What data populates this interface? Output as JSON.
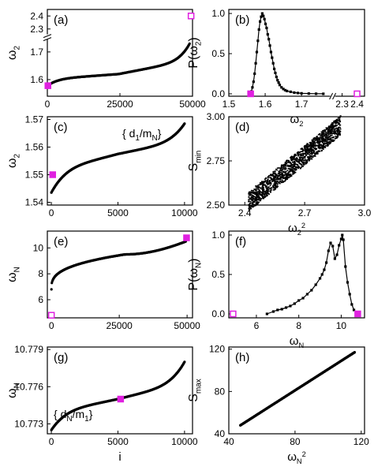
{
  "colors": {
    "data": "#000000",
    "highlight": "#e020e0",
    "axis": "#000000"
  },
  "chart_data": [
    {
      "id": "a",
      "panel_label": "(a)",
      "type": "scatter",
      "ylabel": "ω2",
      "xlabel": "",
      "xlim": [
        0,
        50000
      ],
      "ylim": [
        1.54,
        2.45
      ],
      "y_axis_break": [
        1.75,
        2.25
      ],
      "xticks": [
        {
          "v": 0,
          "label": "0"
        },
        {
          "v": 25000,
          "label": "25000"
        },
        {
          "v": 50000,
          "label": "50000"
        }
      ],
      "yticks": [
        {
          "v": 1.6,
          "label": "1.6"
        },
        {
          "v": 1.7,
          "label": "1.7"
        },
        {
          "v": 2.3,
          "label": "2.3"
        },
        {
          "v": 2.4,
          "label": "2.4"
        }
      ],
      "curve": {
        "kind": "sorted",
        "x0": 0,
        "x1": 49000,
        "y0": 1.578,
        "y1": 1.73,
        "ymid": 1.62,
        "p": 7
      },
      "markers": [
        {
          "x": 200,
          "y": 1.578,
          "style": "filled"
        },
        {
          "x": 49500,
          "y": 2.4,
          "style": "open"
        }
      ]
    },
    {
      "id": "b",
      "panel_label": "(b)",
      "type": "line",
      "ylabel": "P(ω2)",
      "xlabel": "ω2",
      "xlim": [
        1.5,
        2.45
      ],
      "ylim": [
        -0.03,
        1.05
      ],
      "x_axis_break": [
        1.78,
        2.25
      ],
      "xticks": [
        {
          "v": 1.5,
          "label": "1.5"
        },
        {
          "v": 1.6,
          "label": "1.6"
        },
        {
          "v": 1.7,
          "label": "1.7"
        },
        {
          "v": 2.3,
          "label": "2.3"
        },
        {
          "v": 2.4,
          "label": "2.4"
        }
      ],
      "yticks": [
        {
          "v": 0.0,
          "label": "0.0"
        },
        {
          "v": 0.5,
          "label": "0.5"
        },
        {
          "v": 1.0,
          "label": "1.0"
        }
      ],
      "points": [
        [
          1.56,
          0.0
        ],
        [
          1.562,
          0.03
        ],
        [
          1.565,
          0.08
        ],
        [
          1.568,
          0.15
        ],
        [
          1.571,
          0.25
        ],
        [
          1.574,
          0.38
        ],
        [
          1.577,
          0.52
        ],
        [
          1.58,
          0.66
        ],
        [
          1.583,
          0.8
        ],
        [
          1.586,
          0.9
        ],
        [
          1.589,
          0.96
        ],
        [
          1.592,
          1.0
        ],
        [
          1.595,
          0.97
        ],
        [
          1.598,
          0.93
        ],
        [
          1.601,
          0.87
        ],
        [
          1.604,
          0.82
        ],
        [
          1.607,
          0.74
        ],
        [
          1.61,
          0.68
        ],
        [
          1.613,
          0.6
        ],
        [
          1.616,
          0.52
        ],
        [
          1.619,
          0.45
        ],
        [
          1.622,
          0.38
        ],
        [
          1.625,
          0.31
        ],
        [
          1.628,
          0.26
        ],
        [
          1.631,
          0.21
        ],
        [
          1.634,
          0.17
        ],
        [
          1.637,
          0.14
        ],
        [
          1.64,
          0.11
        ],
        [
          1.645,
          0.08
        ],
        [
          1.65,
          0.06
        ],
        [
          1.655,
          0.045
        ],
        [
          1.66,
          0.035
        ],
        [
          1.67,
          0.025
        ],
        [
          1.68,
          0.015
        ],
        [
          1.69,
          0.01
        ],
        [
          1.7,
          0.006
        ],
        [
          1.72,
          0.003
        ],
        [
          1.74,
          0.001
        ],
        [
          1.76,
          0.0
        ]
      ],
      "markers": [
        {
          "x": 1.56,
          "y": 0.0,
          "style": "filled"
        },
        {
          "x": 2.4,
          "y": 0.0,
          "style": "open"
        }
      ]
    },
    {
      "id": "c",
      "panel_label": "(c)",
      "type": "scatter",
      "ylabel": "ω2",
      "xlabel": "",
      "annotation": "{ d1/mN}",
      "xlim": [
        -300,
        10600
      ],
      "ylim": [
        1.539,
        1.571
      ],
      "xticks": [
        {
          "v": 0,
          "label": "0"
        },
        {
          "v": 5000,
          "label": "5000"
        },
        {
          "v": 10000,
          "label": "10000"
        }
      ],
      "yticks": [
        {
          "v": 1.54,
          "label": "1.54"
        },
        {
          "v": 1.55,
          "label": "1.55"
        },
        {
          "v": 1.56,
          "label": "1.56"
        },
        {
          "v": 1.57,
          "label": "1.57"
        }
      ],
      "curve": {
        "kind": "sorted",
        "x0": 0,
        "x1": 10000,
        "y0": 1.5435,
        "y1": 1.5685,
        "ymid": 1.5575,
        "p": 5
      },
      "markers": [
        {
          "x": 100,
          "y": 1.55,
          "style": "filled"
        }
      ]
    },
    {
      "id": "d",
      "panel_label": "(d)",
      "type": "scatter",
      "ylabel": "Smin",
      "xlabel": "ω2²",
      "xlim": [
        2.32,
        3.0
      ],
      "ylim": [
        2.5,
        3.0
      ],
      "xticks": [
        {
          "v": 2.4,
          "label": "2.4"
        },
        {
          "v": 2.7,
          "label": "2.7"
        },
        {
          "v": 3.0,
          "label": "3.0"
        }
      ],
      "yticks": [
        {
          "v": 2.5,
          "label": "2.50"
        },
        {
          "v": 2.75,
          "label": "2.75"
        },
        {
          "v": 3.0,
          "label": "3.00"
        }
      ],
      "band": {
        "x0": 2.42,
        "x1": 2.88,
        "y_at_x0": 2.52,
        "y_at_x1": 2.95,
        "spread": 0.11,
        "count": 1400
      }
    },
    {
      "id": "e",
      "panel_label": "(e)",
      "type": "scatter",
      "ylabel": "ωN",
      "xlabel": "",
      "xlim": [
        -1500,
        52000
      ],
      "ylim": [
        4.6,
        11.3
      ],
      "xticks": [
        {
          "v": 0,
          "label": "0"
        },
        {
          "v": 25000,
          "label": "25000"
        },
        {
          "v": 50000,
          "label": "50000"
        }
      ],
      "yticks": [
        {
          "v": 6,
          "label": "6"
        },
        {
          "v": 8,
          "label": "8"
        },
        {
          "v": 10,
          "label": "10"
        }
      ],
      "curve": {
        "kind": "sqrt",
        "x0": 0,
        "x1": 49500,
        "y0": 6.8,
        "y1": 10.5,
        "ymid": 9.5
      },
      "markers": [
        {
          "x": 0,
          "y": 4.8,
          "style": "open"
        },
        {
          "x": 49800,
          "y": 10.78,
          "style": "filled"
        }
      ]
    },
    {
      "id": "f",
      "panel_label": "(f)",
      "type": "line",
      "ylabel": "P(ωN)",
      "xlabel": "ωN",
      "xlim": [
        4.7,
        11.1
      ],
      "ylim": [
        -0.05,
        1.05
      ],
      "xticks": [
        {
          "v": 6,
          "label": "6"
        },
        {
          "v": 8,
          "label": "8"
        },
        {
          "v": 10,
          "label": "10"
        }
      ],
      "yticks": [
        {
          "v": 0.0,
          "label": "0.0"
        },
        {
          "v": 0.5,
          "label": "0.5"
        },
        {
          "v": 1.0,
          "label": "1.0"
        }
      ],
      "points": [
        [
          6.5,
          0.0
        ],
        [
          6.8,
          0.03
        ],
        [
          7.0,
          0.05
        ],
        [
          7.2,
          0.06
        ],
        [
          7.4,
          0.08
        ],
        [
          7.6,
          0.1
        ],
        [
          7.8,
          0.13
        ],
        [
          8.0,
          0.17
        ],
        [
          8.2,
          0.2
        ],
        [
          8.4,
          0.25
        ],
        [
          8.6,
          0.3
        ],
        [
          8.8,
          0.37
        ],
        [
          9.0,
          0.45
        ],
        [
          9.1,
          0.5
        ],
        [
          9.2,
          0.56
        ],
        [
          9.3,
          0.65
        ],
        [
          9.4,
          0.8
        ],
        [
          9.5,
          0.9
        ],
        [
          9.6,
          0.86
        ],
        [
          9.7,
          0.7
        ],
        [
          9.8,
          0.75
        ],
        [
          9.9,
          0.87
        ],
        [
          10.0,
          0.95
        ],
        [
          10.05,
          1.0
        ],
        [
          10.1,
          0.94
        ],
        [
          10.2,
          0.6
        ],
        [
          10.3,
          0.4
        ],
        [
          10.4,
          0.25
        ],
        [
          10.5,
          0.12
        ],
        [
          10.6,
          0.05
        ],
        [
          10.7,
          0.02
        ],
        [
          10.75,
          0.0
        ]
      ],
      "markers": [
        {
          "x": 4.9,
          "y": 0.0,
          "style": "open"
        },
        {
          "x": 10.78,
          "y": 0.0,
          "style": "filled"
        }
      ]
    },
    {
      "id": "g",
      "panel_label": "(g)",
      "type": "scatter",
      "ylabel": "ωN",
      "xlabel": "i",
      "annotation": "{ dN/m1}",
      "xlim": [
        -300,
        10600
      ],
      "ylim": [
        10.7722,
        10.7792
      ],
      "xticks": [
        {
          "v": 0,
          "label": "0"
        },
        {
          "v": 5000,
          "label": "5000"
        },
        {
          "v": 10000,
          "label": "10000"
        }
      ],
      "yticks": [
        {
          "v": 10.773,
          "label": "10.773"
        },
        {
          "v": 10.776,
          "label": "10.776"
        },
        {
          "v": 10.779,
          "label": "10.779"
        }
      ],
      "curve": {
        "kind": "sorted",
        "x0": 0,
        "x1": 10000,
        "y0": 10.7725,
        "y1": 10.778,
        "ymid": 10.775,
        "p": 5
      },
      "markers": [
        {
          "x": 5200,
          "y": 10.775,
          "style": "filled"
        }
      ]
    },
    {
      "id": "h",
      "panel_label": "(h)",
      "type": "scatter",
      "ylabel": "Smax",
      "xlabel": "ωN²",
      "xlim": [
        40,
        122
      ],
      "ylim": [
        40,
        122
      ],
      "xticks": [
        {
          "v": 40,
          "label": "40"
        },
        {
          "v": 80,
          "label": "80"
        },
        {
          "v": 120,
          "label": "120"
        }
      ],
      "yticks": [
        {
          "v": 40,
          "label": "40"
        },
        {
          "v": 80,
          "label": "80"
        },
        {
          "v": 120,
          "label": "120"
        }
      ],
      "line": {
        "x0": 47,
        "y0": 48,
        "x1": 116,
        "y1": 117
      }
    }
  ]
}
